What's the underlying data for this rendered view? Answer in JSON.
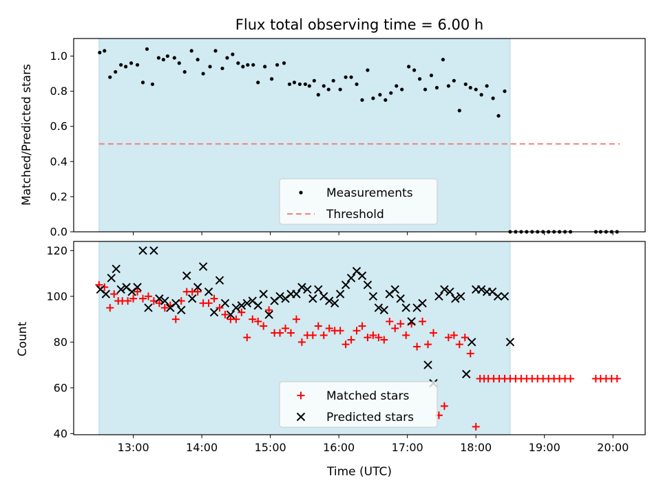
{
  "chart_data": [
    {
      "type": "scatter",
      "title": "Flux total observing time = 6.00 h",
      "xlabel": "",
      "ylabel": "Matched/Predicted stars",
      "ylim": [
        0,
        1.1
      ],
      "yticks": [
        "0.0",
        "0.2",
        "0.4",
        "0.6",
        "0.8",
        "1.0"
      ],
      "xlim_hours": [
        12.13,
        20.47
      ],
      "observing_window_hours": [
        12.5,
        18.5
      ],
      "shade_color": "#add8e6",
      "grid": false,
      "legend_position": "lower-center",
      "series": [
        {
          "name": "Measurements",
          "marker": "dot",
          "color": "#000000",
          "x": [
            12.51,
            12.58,
            12.66,
            12.74,
            12.82,
            12.89,
            12.97,
            13.06,
            13.14,
            13.2,
            13.28,
            13.37,
            13.44,
            13.5,
            13.6,
            13.67,
            13.75,
            13.85,
            13.94,
            14.02,
            14.12,
            14.2,
            14.3,
            14.37,
            14.45,
            14.53,
            14.6,
            14.67,
            14.75,
            14.82,
            14.92,
            15.02,
            15.1,
            15.2,
            15.28,
            15.35,
            15.43,
            15.51,
            15.57,
            15.64,
            15.7,
            15.78,
            15.85,
            15.92,
            16.02,
            16.1,
            16.18,
            16.26,
            16.34,
            16.42,
            16.5,
            16.6,
            16.68,
            16.76,
            16.84,
            16.92,
            17.02,
            17.1,
            17.18,
            17.26,
            17.35,
            17.43,
            17.52,
            17.6,
            17.68,
            17.76,
            17.85,
            17.92,
            18.0,
            18.08,
            18.16,
            18.25,
            18.33,
            18.42,
            18.5,
            18.58,
            18.66,
            18.74,
            18.82,
            18.9,
            18.98,
            19.06,
            19.14,
            19.22,
            19.3,
            19.38,
            19.75,
            19.82,
            19.9,
            19.98,
            20.06
          ],
          "y": [
            1.02,
            1.03,
            0.88,
            0.91,
            0.95,
            0.94,
            0.96,
            0.95,
            0.85,
            1.04,
            0.84,
            0.99,
            0.98,
            1.0,
            0.99,
            0.96,
            0.91,
            1.03,
            0.98,
            0.9,
            0.94,
            1.03,
            0.93,
            0.99,
            1.01,
            0.96,
            0.94,
            0.95,
            0.95,
            0.85,
            0.94,
            0.87,
            0.95,
            0.96,
            0.84,
            0.85,
            0.84,
            0.84,
            0.83,
            0.86,
            0.78,
            0.83,
            0.81,
            0.86,
            0.81,
            0.88,
            0.88,
            0.84,
            0.75,
            0.92,
            0.76,
            0.78,
            0.75,
            0.79,
            0.83,
            0.81,
            0.94,
            0.92,
            0.87,
            0.81,
            0.89,
            0.82,
            0.98,
            0.83,
            0.86,
            0.69,
            0.84,
            0.82,
            0.81,
            0.78,
            0.83,
            0.76,
            0.66,
            0.8,
            0,
            0,
            0,
            0,
            0,
            0,
            0,
            0,
            0,
            0,
            0,
            0,
            0,
            0,
            0,
            0,
            0
          ]
        },
        {
          "name": "Threshold",
          "style": "dashed",
          "color": "#f08080",
          "x": [
            12.5,
            20.1
          ],
          "y": [
            0.5,
            0.5
          ]
        }
      ]
    },
    {
      "type": "scatter",
      "title": "",
      "xlabel": "Time (UTC)",
      "ylabel": "Count",
      "ylim": [
        39.5,
        124
      ],
      "yticks": [
        "40",
        "60",
        "80",
        "100",
        "120"
      ],
      "xticks": [
        "13:00",
        "14:00",
        "15:00",
        "16:00",
        "17:00",
        "18:00",
        "19:00",
        "20:00"
      ],
      "xlim_hours": [
        12.13,
        20.47
      ],
      "observing_window_hours": [
        12.5,
        18.5
      ],
      "shade_color": "#add8e6",
      "grid": false,
      "legend_position": "lower-center",
      "series": [
        {
          "name": "Matched stars",
          "marker": "plus",
          "color": "#ff0000",
          "x": [
            12.5,
            12.58,
            12.66,
            12.72,
            12.78,
            12.84,
            12.92,
            13.0,
            13.06,
            13.14,
            13.22,
            13.3,
            13.38,
            13.46,
            13.54,
            13.62,
            13.7,
            13.78,
            13.86,
            13.94,
            14.02,
            14.1,
            14.18,
            14.26,
            14.34,
            14.42,
            14.5,
            14.58,
            14.66,
            14.74,
            14.82,
            14.9,
            14.98,
            15.06,
            15.14,
            15.22,
            15.3,
            15.38,
            15.46,
            15.54,
            15.62,
            15.7,
            15.78,
            15.86,
            15.94,
            16.02,
            16.1,
            16.18,
            16.26,
            16.34,
            16.42,
            16.5,
            16.58,
            16.66,
            16.74,
            16.82,
            16.9,
            16.98,
            17.06,
            17.14,
            17.22,
            17.3,
            17.38,
            17.46,
            17.54,
            17.6,
            17.68,
            17.76,
            17.84,
            17.92,
            18.0,
            18.06,
            18.12,
            18.18,
            18.26,
            18.34,
            18.42,
            18.5,
            18.58,
            18.66,
            18.74,
            18.82,
            18.9,
            18.98,
            19.06,
            19.14,
            19.22,
            19.3,
            19.38,
            19.75,
            19.82,
            19.9,
            19.98,
            20.06
          ],
          "y": [
            105,
            104,
            95,
            101,
            98,
            98,
            98,
            99,
            102,
            99,
            100,
            98,
            97,
            95,
            96,
            90,
            98,
            102,
            102,
            102,
            97,
            97,
            99,
            95,
            92,
            90,
            90,
            93,
            82,
            90,
            89,
            87,
            94,
            84,
            84,
            86,
            84,
            90,
            80,
            83,
            83,
            87,
            83,
            86,
            85,
            85,
            79,
            81,
            85,
            87,
            82,
            83,
            82,
            81,
            89,
            86,
            88,
            83,
            88,
            78,
            89,
            79,
            84,
            48,
            52,
            82,
            83,
            79,
            82,
            75,
            43,
            64,
            64,
            64,
            64,
            64,
            64,
            64,
            64,
            64,
            64,
            64,
            64,
            64,
            64,
            64,
            64,
            64,
            64,
            64,
            64,
            64,
            64,
            64
          ],
          "note_x_shift": "first x aligned to start of window"
        },
        {
          "name": "Predicted stars",
          "marker": "x",
          "color": "#000000",
          "x": [
            12.52,
            12.6,
            12.68,
            12.75,
            12.82,
            12.9,
            12.98,
            13.06,
            13.14,
            13.22,
            13.3,
            13.38,
            13.46,
            13.54,
            13.62,
            13.7,
            13.78,
            13.86,
            13.94,
            14.02,
            14.1,
            14.18,
            14.26,
            14.34,
            14.42,
            14.5,
            14.58,
            14.66,
            14.74,
            14.82,
            14.9,
            14.98,
            15.06,
            15.14,
            15.22,
            15.3,
            15.38,
            15.46,
            15.54,
            15.62,
            15.7,
            15.78,
            15.86,
            15.94,
            16.02,
            16.1,
            16.18,
            16.26,
            16.34,
            16.42,
            16.5,
            16.58,
            16.66,
            16.74,
            16.82,
            16.9,
            16.98,
            17.06,
            17.14,
            17.22,
            17.3,
            17.38,
            17.46,
            17.54,
            17.62,
            17.7,
            17.78,
            17.86,
            17.94,
            18.0,
            18.08,
            18.16,
            18.24,
            18.32,
            18.42,
            18.5
          ],
          "y": [
            103,
            101,
            108,
            112,
            103,
            104,
            102,
            104,
            120,
            95,
            120,
            99,
            98,
            95,
            97,
            94,
            109,
            99,
            104,
            113,
            102,
            93,
            107,
            97,
            92,
            95,
            96,
            97,
            98,
            96,
            101,
            92,
            98,
            100,
            99,
            101,
            101,
            104,
            103,
            99,
            103,
            100,
            98,
            97,
            101,
            105,
            108,
            111,
            109,
            105,
            100,
            95,
            94,
            101,
            103,
            99,
            95,
            89,
            95,
            97,
            70,
            62,
            100,
            103,
            102,
            99,
            100,
            66,
            80,
            103,
            103,
            102,
            102,
            100,
            100,
            80
          ]
        }
      ]
    }
  ]
}
